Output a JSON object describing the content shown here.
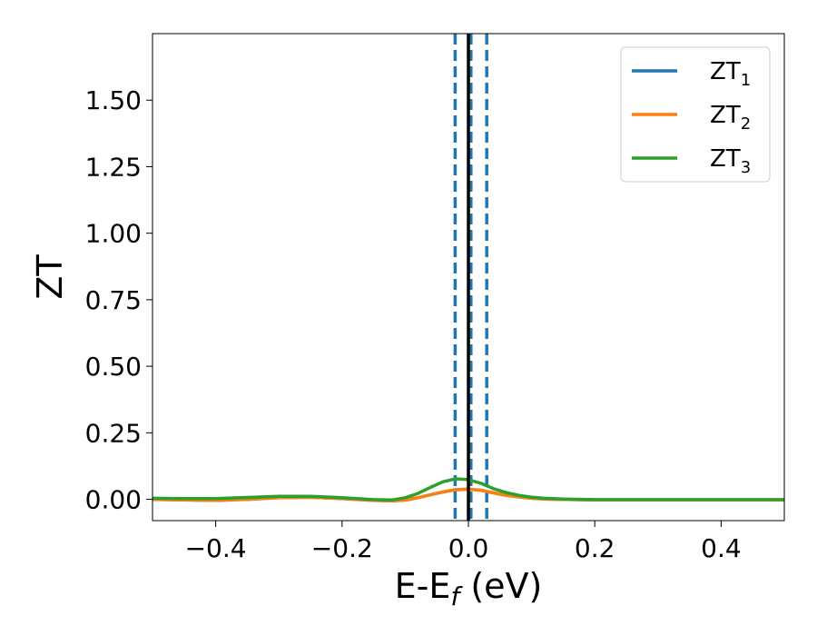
{
  "chart_data": {
    "type": "line",
    "title": "",
    "xlabel": "E-E",
    "xlabel_sub": "f",
    "xlabel_suffix": " (eV)",
    "ylabel": "ZT",
    "xlim": [
      -0.5,
      0.5
    ],
    "ylim": [
      -0.08,
      1.75
    ],
    "grid": false,
    "legend": "top-right",
    "xticks": [
      -0.4,
      -0.2,
      0.0,
      0.2,
      0.4
    ],
    "xtick_labels": [
      "−0.4",
      "−0.2",
      "0.0",
      "0.2",
      "0.4"
    ],
    "yticks": [
      0.0,
      0.25,
      0.5,
      0.75,
      1.0,
      1.25,
      1.5
    ],
    "ytick_labels": [
      "0.00",
      "0.25",
      "0.50",
      "0.75",
      "1.00",
      "1.25",
      "1.50"
    ],
    "vlines": [
      {
        "x": 0.0,
        "style": "solid",
        "color": "#000000"
      },
      {
        "x": -0.021,
        "style": "dashed",
        "color": "#1f77b4"
      },
      {
        "x": 0.004,
        "style": "dashed",
        "color": "#1f77b4"
      },
      {
        "x": 0.029,
        "style": "dashed",
        "color": "#1f77b4"
      }
    ],
    "x": [
      -0.5,
      -0.45,
      -0.4,
      -0.35,
      -0.3,
      -0.25,
      -0.2,
      -0.15,
      -0.12,
      -0.1,
      -0.08,
      -0.06,
      -0.04,
      -0.02,
      0.0,
      0.02,
      0.04,
      0.06,
      0.08,
      0.1,
      0.12,
      0.15,
      0.2,
      0.25,
      0.3,
      0.4,
      0.5
    ],
    "series": [
      {
        "name": "ZT",
        "name_sub": "1",
        "color": "#1f77b4",
        "values": [
          0.0,
          -0.002,
          -0.004,
          0.0,
          0.006,
          0.008,
          0.003,
          -0.004,
          -0.006,
          -0.003,
          0.006,
          0.017,
          0.028,
          0.036,
          0.038,
          0.034,
          0.024,
          0.015,
          0.009,
          0.004,
          0.001,
          0.0,
          -0.002,
          -0.002,
          -0.002,
          -0.002,
          -0.002
        ]
      },
      {
        "name": "ZT",
        "name_sub": "2",
        "color": "#ff7f0e",
        "values": [
          0.0,
          -0.002,
          -0.004,
          0.0,
          0.006,
          0.008,
          0.003,
          -0.004,
          -0.006,
          -0.003,
          0.006,
          0.017,
          0.028,
          0.036,
          0.038,
          0.034,
          0.024,
          0.015,
          0.009,
          0.004,
          0.001,
          0.0,
          -0.002,
          -0.002,
          -0.002,
          -0.002,
          -0.002
        ]
      },
      {
        "name": "ZT",
        "name_sub": "3",
        "color": "#2ca02c",
        "values": [
          0.004,
          0.003,
          0.003,
          0.007,
          0.011,
          0.011,
          0.006,
          -0.001,
          -0.002,
          0.006,
          0.022,
          0.045,
          0.066,
          0.077,
          0.074,
          0.06,
          0.04,
          0.025,
          0.015,
          0.008,
          0.004,
          0.001,
          -0.001,
          -0.001,
          -0.001,
          -0.001,
          -0.001
        ]
      }
    ]
  }
}
